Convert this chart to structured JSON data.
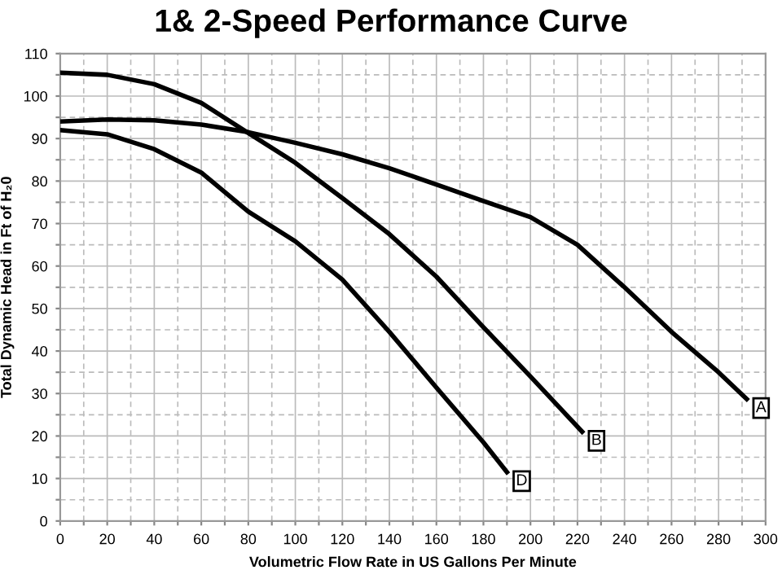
{
  "chart_data": {
    "type": "line",
    "title": "1& 2-Speed Performance Curve",
    "xlabel": "Volumetric Flow Rate in US Gallons Per Minute",
    "ylabel": "Total Dynamic Head in Ft of H₂0",
    "series": [
      {
        "name": "A",
        "color": "#000000",
        "x": [
          0,
          20,
          40,
          60,
          80,
          100,
          120,
          140,
          160,
          180,
          200,
          220,
          240,
          260,
          280,
          292
        ],
        "values": [
          94,
          94.5,
          94.3,
          93.3,
          91.5,
          89,
          86.3,
          83,
          79.2,
          75.3,
          71.5,
          65,
          55,
          44.5,
          35,
          28.7
        ]
      },
      {
        "name": "B",
        "color": "#000000",
        "x": [
          0,
          20,
          40,
          60,
          80,
          100,
          120,
          140,
          160,
          180,
          200,
          222
        ],
        "values": [
          105.5,
          105,
          102.8,
          98.4,
          91.3,
          84.3,
          76,
          67.5,
          57.5,
          45.6,
          34,
          21
        ]
      },
      {
        "name": "D",
        "color": "#000000",
        "x": [
          0,
          20,
          40,
          60,
          80,
          100,
          120,
          140,
          160,
          180,
          190
        ],
        "values": [
          92,
          91,
          87.5,
          82,
          72.8,
          65.8,
          56.8,
          44.5,
          31.4,
          18.5,
          11.5
        ]
      }
    ],
    "xlim": [
      0,
      300
    ],
    "ylim": [
      0,
      110
    ],
    "xticks": [
      0,
      {
        "value": 10,
        "label": null
      },
      20,
      {
        "value": 30,
        "label": null
      },
      40,
      {
        "value": 50,
        "label": null
      },
      60,
      {
        "value": 70,
        "label": null
      },
      80,
      {
        "value": 90,
        "label": null
      },
      100,
      {
        "value": 110,
        "label": null
      },
      120,
      {
        "value": 130,
        "label": null
      },
      140,
      {
        "value": 150,
        "label": null
      },
      160,
      {
        "value": 170,
        "label": null
      },
      180,
      {
        "value": 190,
        "label": null
      },
      200,
      {
        "value": 210,
        "label": null
      },
      220,
      {
        "value": 230,
        "label": null
      },
      240,
      {
        "value": 250,
        "label": null
      },
      260,
      {
        "value": 270,
        "label": null
      },
      280,
      {
        "value": 290,
        "label": null
      },
      300
    ],
    "yticks": [
      0,
      {
        "value": 5,
        "label": null
      },
      10,
      {
        "value": 15,
        "label": null
      },
      20,
      {
        "value": 25,
        "label": null
      },
      30,
      {
        "value": 35,
        "label": null
      },
      40,
      {
        "value": 45,
        "label": null
      },
      50,
      {
        "value": 55,
        "label": null
      },
      60,
      {
        "value": 65,
        "label": null
      },
      70,
      {
        "value": 75,
        "label": null
      },
      80,
      {
        "value": 85,
        "label": null
      },
      90,
      {
        "value": 95,
        "label": null
      },
      100,
      {
        "value": 105,
        "label": null
      },
      110
    ],
    "grid": true,
    "legend": false,
    "marker": "none",
    "line_style": "solid"
  }
}
